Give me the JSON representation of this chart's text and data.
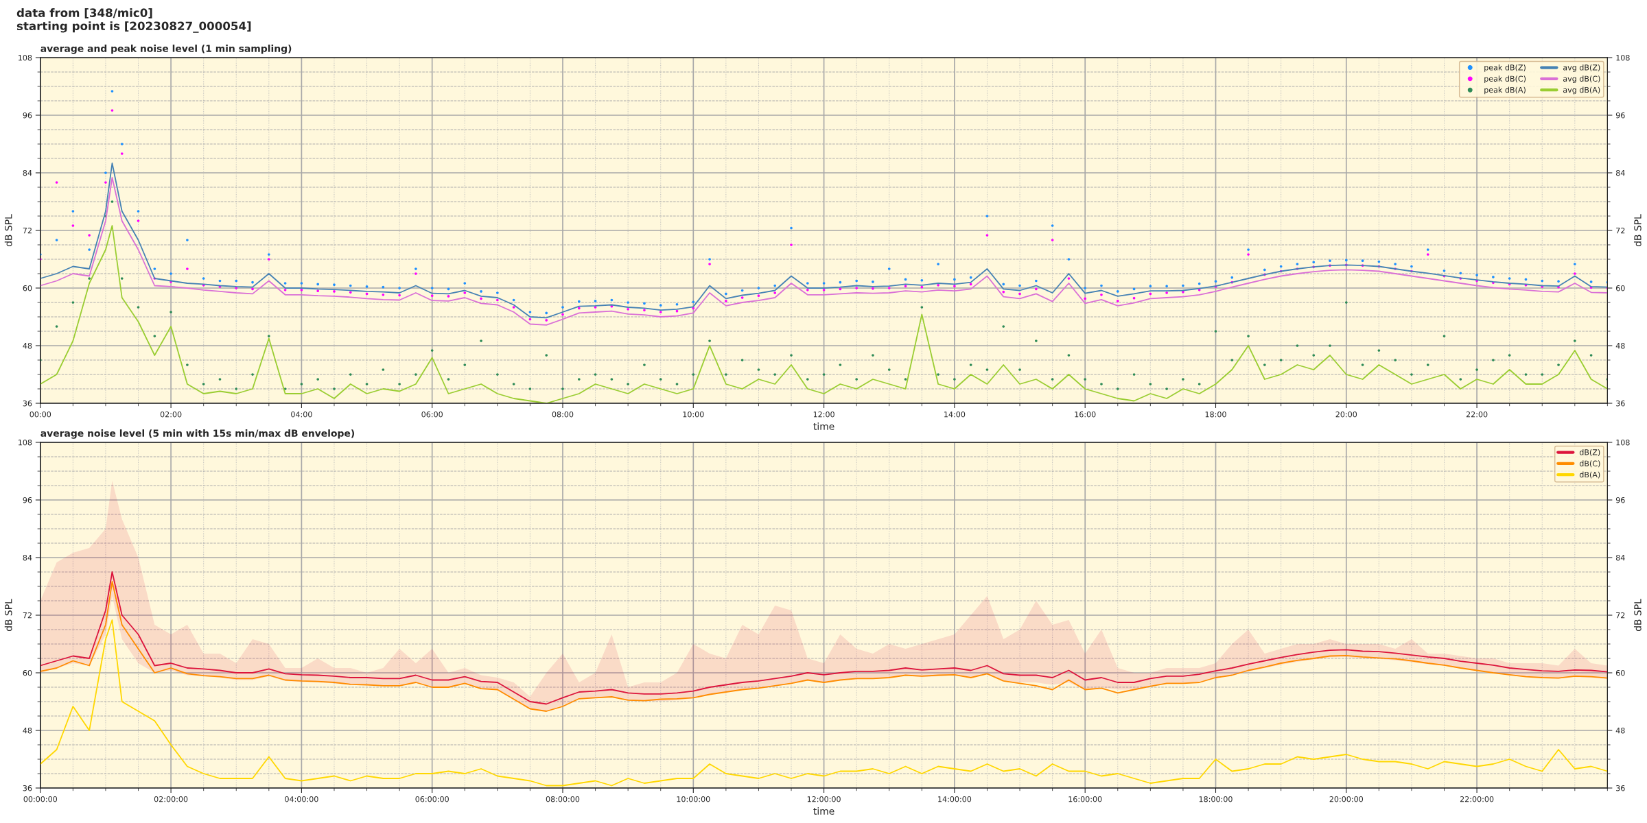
{
  "chart_data": [
    {
      "type": "line",
      "title": "average and peak noise level (1 min sampling)",
      "xlabel": "time",
      "ylabel": "dB SPL",
      "y2label": "dB SPL",
      "annotations": [
        "data from [348/mic0]",
        "starting point is [20230827_000054]"
      ],
      "x": [
        0,
        0.25,
        0.5,
        0.75,
        1,
        1.1,
        1.25,
        1.5,
        1.75,
        2,
        2.25,
        2.5,
        2.75,
        3,
        3.25,
        3.5,
        3.75,
        4,
        4.25,
        4.5,
        4.75,
        5,
        5.25,
        5.5,
        5.75,
        6,
        6.25,
        6.5,
        6.75,
        7,
        7.25,
        7.5,
        7.75,
        8,
        8.25,
        8.5,
        8.75,
        9,
        9.25,
        9.5,
        9.75,
        10,
        10.25,
        10.5,
        10.75,
        11,
        11.25,
        11.5,
        11.75,
        12,
        12.25,
        12.5,
        12.75,
        13,
        13.25,
        13.5,
        13.75,
        14,
        14.25,
        14.5,
        14.75,
        15,
        15.25,
        15.5,
        15.75,
        16,
        16.25,
        16.5,
        16.75,
        17,
        17.25,
        17.5,
        17.75,
        18,
        18.25,
        18.5,
        18.75,
        19,
        19.25,
        19.5,
        19.75,
        20,
        20.25,
        20.5,
        20.75,
        21,
        21.25,
        21.5,
        21.75,
        22,
        22.25,
        22.5,
        22.75,
        23,
        23.25,
        23.5,
        23.75,
        24
      ],
      "series": [
        {
          "name": "peak dB(Z)",
          "type": "scatter",
          "marker": "circle",
          "color": "#1e90ff",
          "values": [
            67,
            70,
            76,
            68,
            84,
            101,
            90,
            76,
            64,
            63,
            70,
            62,
            61.5,
            61.5,
            61.2,
            67,
            61,
            61,
            60.8,
            60.7,
            60.5,
            60.3,
            60.2,
            60,
            64,
            60,
            59.8,
            61,
            59.3,
            59,
            57.5,
            55,
            54.8,
            56,
            57.2,
            57.3,
            57.5,
            57,
            56.8,
            56.4,
            56.6,
            57.1,
            66,
            58.8,
            59.5,
            60,
            60.5,
            72.5,
            61,
            61,
            61.2,
            61.5,
            61.3,
            64,
            61.8,
            61.6,
            65,
            61.8,
            62.2,
            75,
            60.8,
            60.5,
            61.5,
            73,
            66,
            60,
            60.5,
            59.3,
            59.8,
            60.4,
            60.4,
            60.5,
            60.9,
            61.4,
            62.2,
            68,
            63.8,
            64.5,
            65,
            65.4,
            65.7,
            65.8,
            65.7,
            65.5,
            65,
            64.5,
            68,
            63.6,
            63.1,
            62.7,
            62.3,
            62,
            61.8,
            61.5,
            61.4,
            65,
            61.3,
            61.2
          ]
        },
        {
          "name": "peak dB(C)",
          "type": "scatter",
          "marker": "circle",
          "color": "#ff00ff",
          "values": [
            66,
            82,
            73,
            71,
            82,
            97,
            88,
            74,
            62,
            61.3,
            64,
            60.6,
            60.3,
            60,
            59.8,
            66,
            59.6,
            59.6,
            59.4,
            59.3,
            59.1,
            58.8,
            58.6,
            58.5,
            63,
            58.4,
            58.3,
            59,
            57.8,
            57.5,
            56,
            53.5,
            53.3,
            54.5,
            55.8,
            56,
            56.2,
            55.6,
            55.4,
            55,
            55.2,
            55.8,
            65,
            57.3,
            58,
            58.4,
            59,
            69,
            59.6,
            59.6,
            59.8,
            60,
            59.9,
            60,
            60.4,
            60.2,
            60.6,
            60.4,
            60.8,
            71,
            59.2,
            58.8,
            59.8,
            70,
            62,
            57.8,
            58.6,
            57.3,
            57.9,
            58.8,
            59,
            59.2,
            59.6,
            60.3,
            61.2,
            67,
            62.8,
            63.5,
            64,
            64.4,
            64.7,
            64.8,
            64.7,
            64.5,
            64,
            63.5,
            67,
            62.5,
            62,
            61.5,
            61.1,
            60.8,
            60.6,
            60.3,
            60.2,
            63,
            60.1,
            60
          ]
        },
        {
          "name": "peak dB(A)",
          "type": "scatter",
          "marker": "circle",
          "color": "#2e8b57",
          "values": [
            45,
            52,
            57,
            62,
            75,
            78,
            62,
            56,
            50,
            55,
            44,
            40,
            41,
            39,
            42,
            50,
            39,
            40,
            41,
            39,
            42,
            40,
            43,
            40,
            42,
            47,
            41,
            44,
            49,
            42,
            40,
            39,
            46,
            39,
            41,
            42,
            41,
            40,
            44,
            41,
            40,
            42,
            49,
            42,
            45,
            43,
            42,
            46,
            41,
            42,
            44,
            41,
            46,
            43,
            41,
            56,
            42,
            41,
            44,
            43,
            52,
            43,
            49,
            41,
            46,
            41,
            40,
            39,
            42,
            40,
            39,
            41,
            40,
            51,
            45,
            50,
            44,
            45,
            48,
            46,
            48,
            57,
            44,
            47,
            45,
            42,
            44,
            50,
            41,
            43,
            45,
            46,
            42,
            42,
            44,
            49,
            46,
            41
          ]
        },
        {
          "name": "avg dB(Z)",
          "color": "#4682b4",
          "values": [
            62,
            63,
            64.5,
            64,
            76,
            86,
            76,
            70,
            62,
            61.5,
            61,
            60.8,
            60.5,
            60.3,
            60.2,
            63,
            60,
            60,
            59.8,
            59.7,
            59.5,
            59.3,
            59.2,
            59,
            60.5,
            58.9,
            58.8,
            59.5,
            58.3,
            58,
            56.5,
            54,
            53.8,
            55,
            56.2,
            56.3,
            56.5,
            56,
            55.8,
            55.4,
            55.6,
            56.1,
            60.5,
            57.8,
            58.5,
            58.9,
            59.5,
            62.5,
            60,
            60,
            60.2,
            60.5,
            60.3,
            60.4,
            60.8,
            60.6,
            61,
            60.8,
            61.2,
            64,
            59.8,
            59.5,
            60.5,
            59,
            63,
            58.9,
            59.5,
            58.3,
            58.8,
            59.4,
            59.4,
            59.5,
            59.9,
            60.4,
            61.2,
            62,
            62.8,
            63.5,
            64,
            64.4,
            64.7,
            64.8,
            64.7,
            64.5,
            64,
            63.5,
            63.1,
            62.6,
            62.1,
            61.7,
            61.3,
            61,
            60.8,
            60.5,
            60.4,
            62.5,
            60.3,
            60.2
          ]
        },
        {
          "name": "avg dB(C)",
          "color": "#da70d6",
          "values": [
            60.5,
            61.5,
            63,
            62.5,
            74,
            83,
            74,
            68,
            60.5,
            60.3,
            60,
            59.6,
            59.3,
            59,
            58.8,
            61.5,
            58.6,
            58.6,
            58.4,
            58.3,
            58.1,
            57.8,
            57.6,
            57.5,
            59,
            57.4,
            57.3,
            58,
            56.8,
            56.5,
            55,
            52.5,
            52.3,
            53.5,
            54.8,
            55,
            55.2,
            54.6,
            54.4,
            54,
            54.2,
            54.8,
            59,
            56.3,
            57,
            57.4,
            58,
            61,
            58.6,
            58.6,
            58.8,
            59,
            58.9,
            59,
            59.4,
            59.2,
            59.6,
            59.4,
            59.8,
            62.5,
            58.2,
            57.8,
            58.8,
            57.2,
            61,
            56.8,
            57.6,
            56.3,
            56.9,
            57.8,
            58,
            58.2,
            58.6,
            59.3,
            60.2,
            61,
            61.8,
            62.5,
            63,
            63.4,
            63.7,
            63.8,
            63.7,
            63.5,
            63,
            62.5,
            62,
            61.5,
            61,
            60.5,
            60.1,
            59.8,
            59.6,
            59.3,
            59.2,
            61,
            59.1,
            59
          ]
        },
        {
          "name": "avg dB(A)",
          "color": "#9acd32",
          "values": [
            40,
            42,
            49,
            61,
            68,
            73,
            58,
            53,
            46,
            52,
            40,
            38,
            38.5,
            38,
            39,
            49.5,
            38,
            38,
            39,
            37,
            40,
            38,
            39,
            38.5,
            40,
            45.5,
            38,
            39,
            40,
            38,
            37,
            36.5,
            36,
            37,
            38,
            40,
            39,
            38,
            40,
            39,
            38,
            39,
            48,
            40,
            39,
            41,
            40,
            44,
            39,
            38,
            40,
            39,
            41,
            40,
            39,
            54.5,
            40,
            39,
            42,
            40,
            44,
            40,
            41,
            39,
            42,
            39,
            38,
            37,
            36.5,
            38,
            37,
            39,
            38,
            40,
            43,
            48,
            41,
            42,
            44,
            43,
            46,
            42,
            41,
            44,
            42,
            40,
            41,
            42,
            39,
            41,
            40,
            43,
            40,
            40,
            42,
            47,
            41,
            39
          ]
        }
      ],
      "xlim": [
        0,
        24
      ],
      "xticks": [
        {
          "value": 0,
          "label": "00:00"
        },
        {
          "value": 2,
          "label": "02:00"
        },
        {
          "value": 4,
          "label": "04:00"
        },
        {
          "value": 6,
          "label": "06:00"
        },
        {
          "value": 8,
          "label": "08:00"
        },
        {
          "value": 10,
          "label": "10:00"
        },
        {
          "value": 12,
          "label": "12:00"
        },
        {
          "value": 14,
          "label": "14:00"
        },
        {
          "value": 16,
          "label": "16:00"
        },
        {
          "value": 18,
          "label": "18:00"
        },
        {
          "value": 20,
          "label": "20:00"
        },
        {
          "value": 22,
          "label": "22:00"
        }
      ],
      "ylim": [
        36,
        108
      ],
      "yticks": [
        36,
        48,
        60,
        72,
        84,
        96,
        108
      ],
      "y2lim": [
        36,
        108
      ],
      "y2ticks": [
        36,
        48,
        60,
        72,
        84,
        96,
        108
      ],
      "grid": true,
      "legend": "upper right"
    },
    {
      "type": "line",
      "title": "average noise level (5 min with 15s min/max dB envelope)",
      "xlabel": "time",
      "ylabel": "dB SPL",
      "y2label": "dB SPL",
      "x": [
        0,
        0.25,
        0.5,
        0.75,
        1,
        1.1,
        1.25,
        1.5,
        1.75,
        2,
        2.25,
        2.5,
        2.75,
        3,
        3.25,
        3.5,
        3.75,
        4,
        4.25,
        4.5,
        4.75,
        5,
        5.25,
        5.5,
        5.75,
        6,
        6.25,
        6.5,
        6.75,
        7,
        7.25,
        7.5,
        7.75,
        8,
        8.25,
        8.5,
        8.75,
        9,
        9.25,
        9.5,
        9.75,
        10,
        10.25,
        10.5,
        10.75,
        11,
        11.25,
        11.5,
        11.75,
        12,
        12.25,
        12.5,
        12.75,
        13,
        13.25,
        13.5,
        13.75,
        14,
        14.25,
        14.5,
        14.75,
        15,
        15.25,
        15.5,
        15.75,
        16,
        16.25,
        16.5,
        16.75,
        17,
        17.25,
        17.5,
        17.75,
        18,
        18.25,
        18.5,
        18.75,
        19,
        19.25,
        19.5,
        19.75,
        20,
        20.25,
        20.5,
        20.75,
        21,
        21.25,
        21.5,
        21.75,
        22,
        22.25,
        22.5,
        22.75,
        23,
        23.25,
        23.5,
        23.75,
        24
      ],
      "series": [
        {
          "name": "dB(Z)",
          "color": "#dc143c",
          "values": [
            61.5,
            62.5,
            63.5,
            63,
            73,
            81,
            72,
            68,
            61.5,
            62,
            61,
            60.8,
            60.5,
            60,
            60,
            60.8,
            59.8,
            59.6,
            59.5,
            59.3,
            59,
            59,
            58.8,
            58.8,
            59.5,
            58.5,
            58.5,
            59.2,
            58.2,
            58,
            56,
            54,
            53.5,
            54.8,
            56,
            56.2,
            56.5,
            55.8,
            55.6,
            55.6,
            55.8,
            56.2,
            57,
            57.5,
            58,
            58.3,
            58.8,
            59.3,
            60,
            59.6,
            60,
            60.3,
            60.3,
            60.5,
            61,
            60.6,
            60.8,
            61,
            60.5,
            61.5,
            59.8,
            59.5,
            59.5,
            59,
            60.5,
            58.5,
            59,
            58,
            58,
            58.8,
            59.3,
            59.3,
            59.7,
            60.4,
            61,
            61.8,
            62.5,
            63.2,
            63.8,
            64.3,
            64.7,
            64.8,
            64.5,
            64.4,
            64.1,
            63.7,
            63.3,
            63,
            62.4,
            62,
            61.6,
            61,
            60.7,
            60.4,
            60.3,
            60.6,
            60.5,
            60.2
          ],
          "lower": [
            60,
            61,
            62,
            61.5,
            68,
            76,
            67,
            62,
            60,
            60.5,
            59.5,
            59.3,
            59,
            58.5,
            58.5,
            59.3,
            58.3,
            58.1,
            58,
            57.8,
            57.5,
            57.5,
            57.3,
            57.3,
            58,
            57,
            57,
            57.7,
            56.7,
            56.5,
            54.5,
            52.5,
            52,
            53.3,
            54.5,
            54.7,
            55,
            54.3,
            54.1,
            54.1,
            54.3,
            54.7,
            55.5,
            56,
            56.5,
            56.8,
            57.3,
            57.8,
            58.5,
            58.1,
            58.5,
            58.8,
            58.8,
            59,
            59.5,
            59.1,
            59.3,
            59.5,
            59,
            60,
            58.3,
            58,
            58,
            57.5,
            58,
            56.5,
            57,
            56.5,
            56.5,
            57.3,
            57.8,
            57.8,
            58.2,
            58.9,
            59.5,
            60.3,
            61,
            61.7,
            62.3,
            62.8,
            63.2,
            63.3,
            63,
            62.9,
            62.6,
            62.2,
            61.8,
            61.5,
            60.9,
            60.5,
            60.1,
            59.5,
            59.2,
            58.9,
            58.8,
            59.1,
            59,
            58.7
          ],
          "upper": [
            75,
            83,
            85,
            86,
            90,
            100,
            92,
            84,
            70,
            68,
            70,
            64,
            64,
            62,
            67,
            66,
            61,
            61,
            63,
            61,
            61,
            60,
            61,
            65,
            62,
            65,
            60,
            61,
            59.5,
            59,
            58,
            55,
            60,
            64,
            58,
            60,
            68,
            57,
            58,
            58,
            60,
            66,
            64,
            63,
            70,
            68,
            74,
            73,
            63,
            62,
            68,
            65,
            64,
            66,
            65,
            66,
            67,
            68,
            72,
            76,
            67,
            69,
            75,
            70,
            71,
            64,
            69,
            61,
            60,
            60,
            61,
            61,
            61,
            62,
            66,
            69,
            64,
            65,
            66,
            66,
            67,
            66,
            66,
            66,
            65,
            67,
            64,
            64,
            63.5,
            63,
            63,
            62,
            62,
            62,
            61.5,
            65,
            62,
            61.5
          ]
        },
        {
          "name": "dB(C)",
          "color": "#ff8c00",
          "values": [
            60.3,
            61,
            62.5,
            61.5,
            70,
            79,
            70,
            65,
            60,
            61,
            59.8,
            59.4,
            59.2,
            58.8,
            58.8,
            59.5,
            58.5,
            58.3,
            58.2,
            58,
            57.6,
            57.5,
            57.3,
            57.3,
            58,
            57,
            57,
            57.8,
            56.7,
            56.5,
            54.5,
            52.5,
            52,
            53,
            54.6,
            54.8,
            55,
            54.3,
            54.2,
            54.5,
            54.6,
            54.8,
            55.5,
            56,
            56.5,
            56.8,
            57.3,
            57.8,
            58.5,
            58,
            58.5,
            58.8,
            58.8,
            59,
            59.5,
            59.3,
            59.5,
            59.6,
            59,
            59.8,
            58.3,
            57.8,
            57.3,
            56.5,
            58.5,
            56.5,
            56.8,
            55.8,
            56.5,
            57.2,
            57.8,
            57.8,
            58,
            59,
            59.5,
            60.5,
            61.2,
            62,
            62.6,
            63,
            63.5,
            63.6,
            63.3,
            63.1,
            62.9,
            62.5,
            62,
            61.6,
            61,
            60.5,
            60,
            59.6,
            59.2,
            59,
            58.9,
            59.3,
            59.2,
            58.9
          ]
        },
        {
          "name": "dB(A)",
          "color": "#ffd700",
          "values": [
            41,
            44,
            53,
            48,
            67,
            71,
            54,
            52,
            50,
            45,
            40.5,
            39,
            38,
            38,
            38,
            42.5,
            38,
            37.5,
            38,
            38.5,
            37.5,
            38.5,
            38,
            38,
            39,
            39,
            39.5,
            39,
            40,
            38.5,
            38,
            37.5,
            36.5,
            36.5,
            37,
            37.5,
            36.5,
            38,
            37,
            37.5,
            38,
            38,
            41,
            39,
            38.5,
            38,
            39,
            38,
            39,
            38.5,
            39.5,
            39.5,
            40,
            39,
            40.5,
            39,
            40.5,
            40,
            39.5,
            41,
            39.5,
            40,
            38.5,
            41,
            39.5,
            39.5,
            38.5,
            39,
            38,
            37,
            37.5,
            38,
            38,
            42,
            39.5,
            40,
            41,
            41,
            42.5,
            42,
            42.5,
            43,
            42,
            41.5,
            41.5,
            41,
            40,
            41.5,
            41,
            40.5,
            41,
            42,
            40.5,
            39.5,
            44,
            40,
            40.5,
            39.5
          ]
        }
      ],
      "xlim": [
        0,
        24
      ],
      "xticks": [
        {
          "value": 0,
          "label": "00:00:00"
        },
        {
          "value": 2,
          "label": "02:00:00"
        },
        {
          "value": 4,
          "label": "04:00:00"
        },
        {
          "value": 6,
          "label": "06:00:00"
        },
        {
          "value": 8,
          "label": "08:00:00"
        },
        {
          "value": 10,
          "label": "10:00:00"
        },
        {
          "value": 12,
          "label": "12:00:00"
        },
        {
          "value": 14,
          "label": "14:00:00"
        },
        {
          "value": 16,
          "label": "16:00:00"
        },
        {
          "value": 18,
          "label": "18:00:00"
        },
        {
          "value": 20,
          "label": "20:00:00"
        },
        {
          "value": 22,
          "label": "22:00:00"
        }
      ],
      "ylim": [
        36,
        108
      ],
      "yticks": [
        36,
        48,
        60,
        72,
        84,
        96,
        108
      ],
      "y2lim": [
        36,
        108
      ],
      "y2ticks": [
        36,
        48,
        60,
        72,
        84,
        96,
        108
      ],
      "grid": true,
      "legend": "upper right"
    }
  ]
}
